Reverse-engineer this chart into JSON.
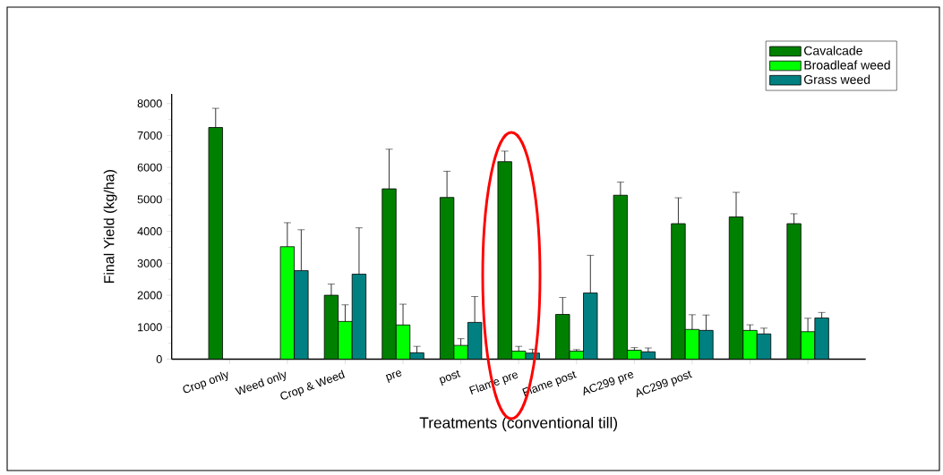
{
  "chart_data": {
    "type": "bar",
    "xlabel": "Treatments (conventional till)",
    "ylabel": "Final Yield (kg/ha)",
    "categories": [
      "Crop only",
      "Weed only",
      "Crop & Weed",
      "pre",
      "post",
      "Flame pre",
      "Flame post",
      "AC299 pre",
      "AC299 post",
      null,
      null
    ],
    "series": [
      {
        "name": "Cavalcade",
        "color": "#008000",
        "values": [
          7250,
          null,
          2000,
          5330,
          5060,
          6180,
          1400,
          5130,
          4240,
          4450,
          4240
        ],
        "errors": [
          600,
          null,
          350,
          1240,
          820,
          330,
          530,
          410,
          810,
          770,
          310
        ]
      },
      {
        "name": "Broadleaf weed",
        "color": "#00ff00",
        "values": [
          null,
          3520,
          1180,
          1070,
          430,
          250,
          250,
          280,
          930,
          900,
          860
        ],
        "errors": [
          null,
          750,
          520,
          650,
          210,
          150,
          50,
          80,
          460,
          175,
          420
        ]
      },
      {
        "name": "Grass weed",
        "color": "#008080",
        "values": [
          null,
          2770,
          2660,
          200,
          1150,
          190,
          2070,
          230,
          900,
          790,
          1290
        ],
        "errors": [
          null,
          1280,
          1450,
          200,
          810,
          120,
          1180,
          120,
          480,
          180,
          170
        ]
      }
    ],
    "ylim": [
      0,
      8300
    ],
    "yticks": [
      0,
      1000,
      2000,
      3000,
      4000,
      5000,
      6000,
      7000,
      8000
    ],
    "legend": "top right",
    "grid": false
  }
}
